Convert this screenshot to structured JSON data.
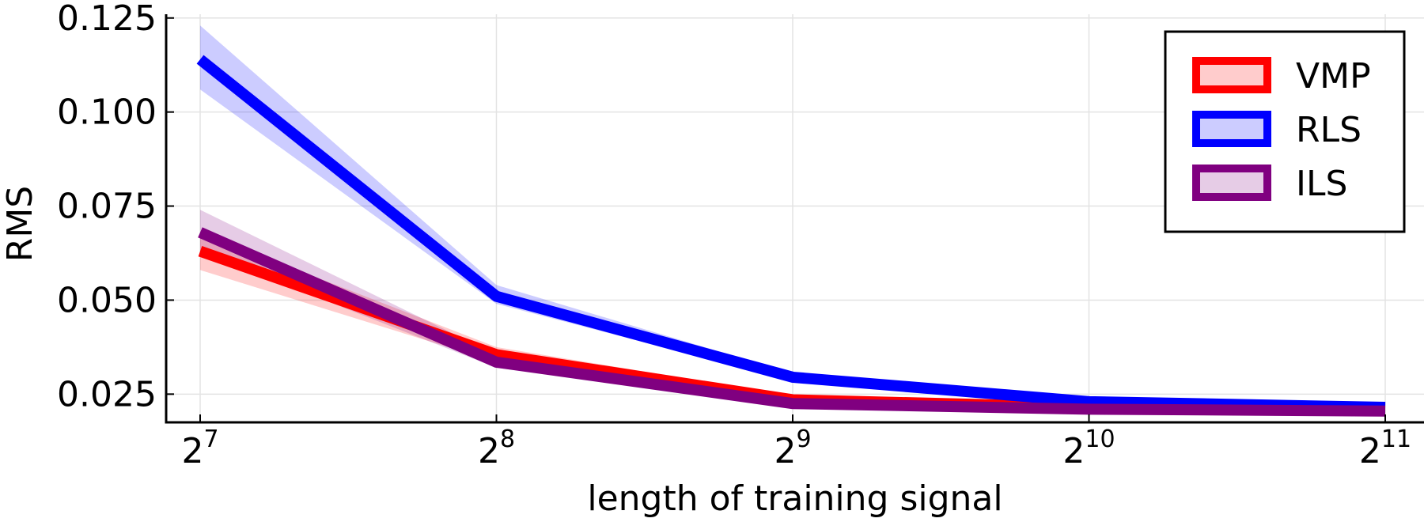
{
  "chart_data": {
    "type": "line",
    "xlabel": "length of training signal",
    "ylabel": "RMS",
    "x_scale": "log2",
    "x": [
      128,
      256,
      512,
      1024,
      2048
    ],
    "x_tick_labels": [
      {
        "base": "2",
        "exp": "7"
      },
      {
        "base": "2",
        "exp": "8"
      },
      {
        "base": "2",
        "exp": "9"
      },
      {
        "base": "2",
        "exp": "10"
      },
      {
        "base": "2",
        "exp": "11"
      }
    ],
    "y_ticks": [
      0.025,
      0.05,
      0.075,
      0.1,
      0.125
    ],
    "y_tick_labels": [
      "0.025",
      "0.050",
      "0.075",
      "0.100",
      "0.125"
    ],
    "ylim": [
      0.0175,
      0.126
    ],
    "grid": true,
    "legend_position": "top-right",
    "series": [
      {
        "name": "VMP",
        "color": "#ff0000",
        "values": [
          0.063,
          0.0355,
          0.0235,
          0.0215,
          0.021
        ],
        "lower": [
          0.058,
          0.0335,
          0.0225,
          0.021,
          0.0205
        ],
        "upper": [
          0.068,
          0.0375,
          0.0245,
          0.022,
          0.0215
        ]
      },
      {
        "name": "RLS",
        "color": "#0000ff",
        "values": [
          0.114,
          0.051,
          0.0295,
          0.023,
          0.0215
        ],
        "lower": [
          0.106,
          0.049,
          0.0285,
          0.0225,
          0.021
        ],
        "upper": [
          0.123,
          0.054,
          0.0305,
          0.0235,
          0.022
        ]
      },
      {
        "name": "ILS",
        "color": "#800080",
        "values": [
          0.068,
          0.0335,
          0.0225,
          0.021,
          0.0205
        ],
        "lower": [
          0.063,
          0.032,
          0.022,
          0.0205,
          0.02
        ],
        "upper": [
          0.074,
          0.0355,
          0.0235,
          0.0215,
          0.021
        ]
      }
    ]
  }
}
